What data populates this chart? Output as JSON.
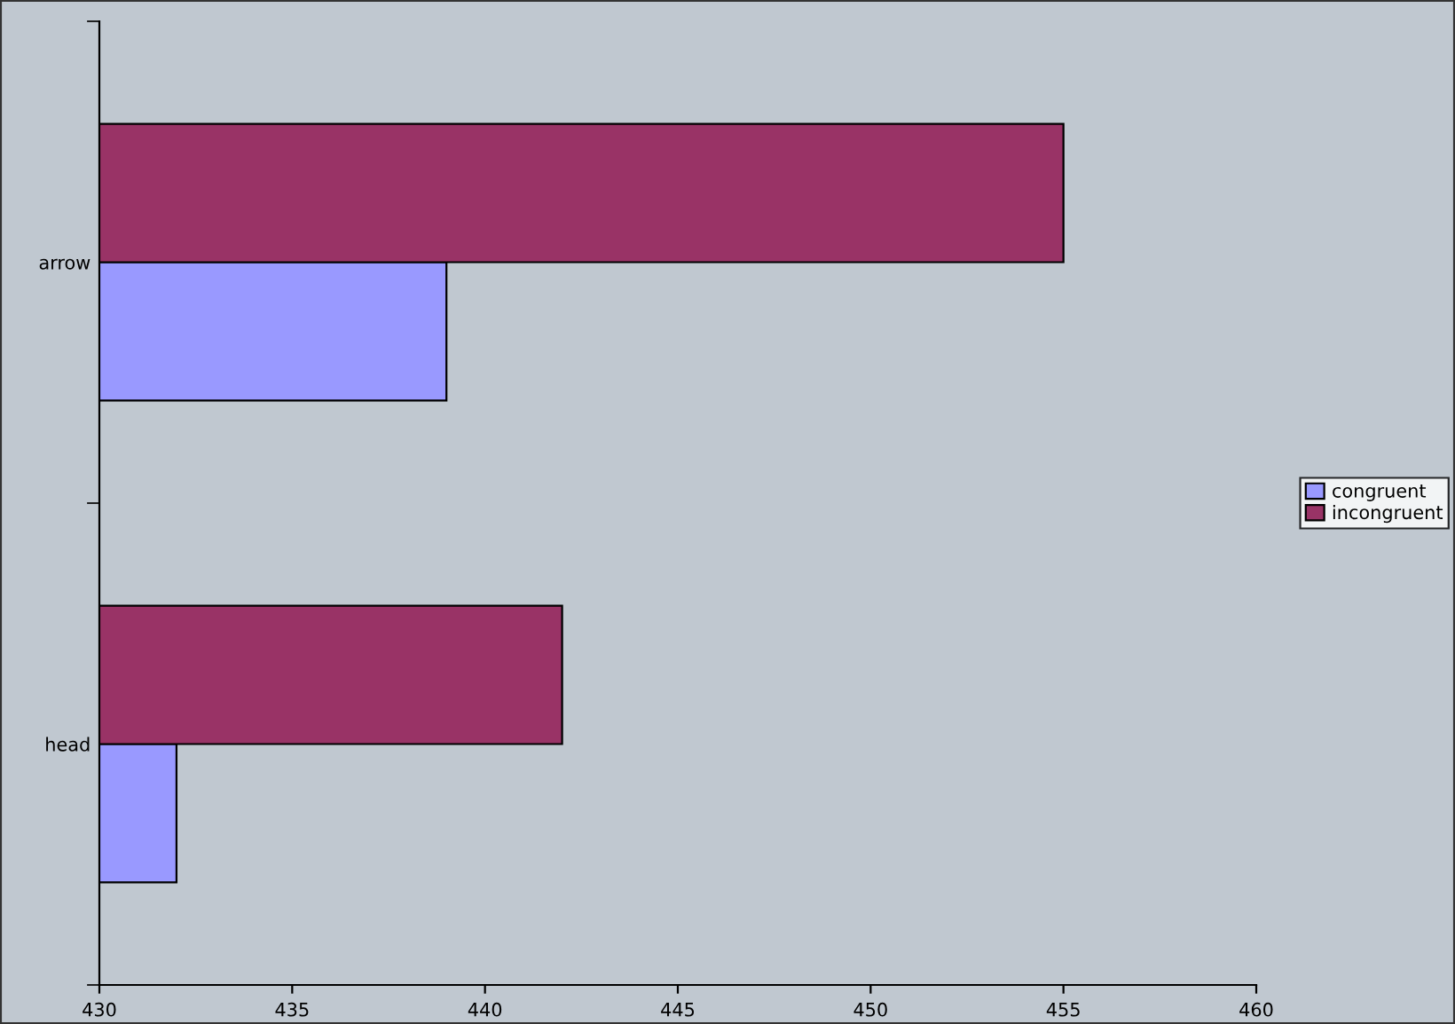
{
  "chart_data": {
    "type": "bar",
    "orientation": "horizontal",
    "categories": [
      "arrow",
      "head"
    ],
    "series": [
      {
        "name": "congruent",
        "color": "#9999ff",
        "values": [
          439,
          432
        ]
      },
      {
        "name": "incongruent",
        "color": "#993366",
        "values": [
          455,
          442
        ]
      }
    ],
    "xlim": [
      430,
      460
    ],
    "xticks": [
      430,
      435,
      440,
      445,
      450,
      455,
      460
    ],
    "legend": "right",
    "grid": false
  }
}
